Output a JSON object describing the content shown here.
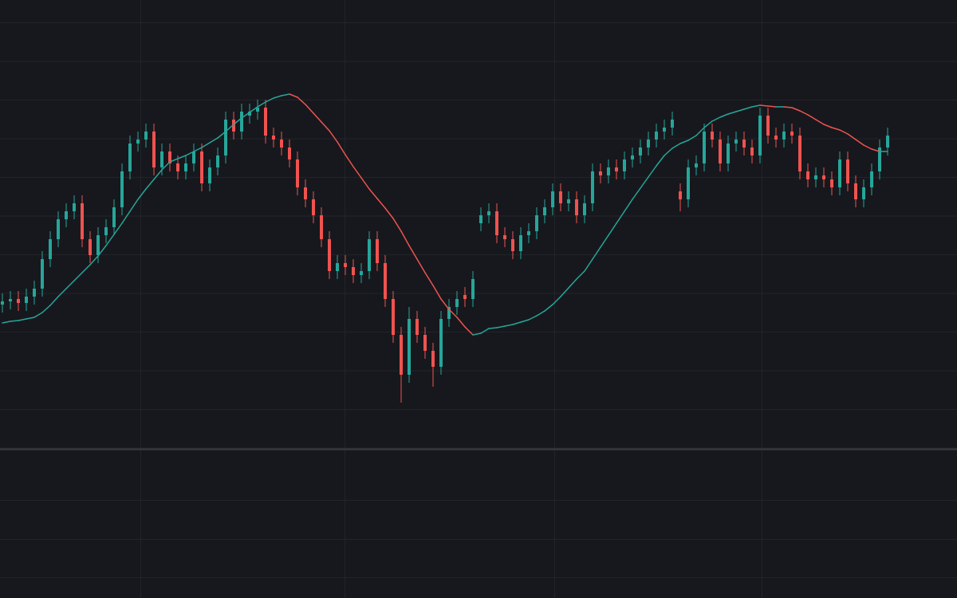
{
  "chart_data": {
    "type": "candlestick",
    "open": [
      61.8,
      62.2,
      62.5,
      62.0,
      62.8,
      63.8,
      67.5,
      70.0,
      72.5,
      73.5,
      74.5,
      70.0,
      68.0,
      70.5,
      71.5,
      74.0,
      78.5,
      82.0,
      82.5,
      83.5,
      79.0,
      81.0,
      79.5,
      78.5,
      79.5,
      81.0,
      77.0,
      79.0,
      80.5,
      85.0,
      83.5,
      85.5,
      86.0,
      86.5,
      83.0,
      82.5,
      81.5,
      80.0,
      76.5,
      75.0,
      73.0,
      70.0,
      66.0,
      67.0,
      66.5,
      65.5,
      66.0,
      70.0,
      67.0,
      62.5,
      58.0,
      53.0,
      60.0,
      58.0,
      56.0,
      54.0,
      60.0,
      61.5,
      63.0,
      62.5,
      72.0,
      73.0,
      73.5,
      70.5,
      70.0,
      68.5,
      70.5,
      71.0,
      73.0,
      74.0,
      76.0,
      74.5,
      75.0,
      73.0,
      74.5,
      78.5,
      78.0,
      79.0,
      78.5,
      80.0,
      80.5,
      81.5,
      82.5,
      83.5,
      84.0,
      76.0,
      75.0,
      79.0,
      79.5,
      83.5,
      82.5,
      79.5,
      82.0,
      82.5,
      81.5,
      80.5,
      85.5,
      83.0,
      82.5,
      83.5,
      83.0,
      78.5,
      77.5,
      78.0,
      77.5,
      76.5,
      80.0,
      77.0,
      75.0,
      76.5,
      78.5,
      81.5
    ],
    "high": [
      63.2,
      63.5,
      63.5,
      63.8,
      64.8,
      68.5,
      71.0,
      73.5,
      74.5,
      75.5,
      75.5,
      71.0,
      71.5,
      72.5,
      75.0,
      79.5,
      83.0,
      83.5,
      84.5,
      84.5,
      82.0,
      82.0,
      80.5,
      80.5,
      82.0,
      82.0,
      80.0,
      81.5,
      86.0,
      86.0,
      87.0,
      87.0,
      87.5,
      87.5,
      84.0,
      83.5,
      82.5,
      81.0,
      77.5,
      76.0,
      74.0,
      71.0,
      68.0,
      68.0,
      67.5,
      67.0,
      71.0,
      71.0,
      68.0,
      63.5,
      59.0,
      61.5,
      61.0,
      59.0,
      57.0,
      61.0,
      62.5,
      63.5,
      64.0,
      66.0,
      74.0,
      74.5,
      74.5,
      71.5,
      71.0,
      71.5,
      72.0,
      74.0,
      75.0,
      77.0,
      77.0,
      76.0,
      76.0,
      75.5,
      79.5,
      79.5,
      80.0,
      80.0,
      81.0,
      81.5,
      82.5,
      83.5,
      84.5,
      85.0,
      86.0,
      77.0,
      80.0,
      80.5,
      84.5,
      84.5,
      83.5,
      83.0,
      83.5,
      83.5,
      82.5,
      86.5,
      86.5,
      84.0,
      84.5,
      84.5,
      84.0,
      79.5,
      79.0,
      79.0,
      78.5,
      81.0,
      81.0,
      78.0,
      77.5,
      79.5,
      82.5,
      84.0
    ],
    "low": [
      60.8,
      61.2,
      61.0,
      61.0,
      61.8,
      62.8,
      66.5,
      69.0,
      71.5,
      72.5,
      69.0,
      67.0,
      67.0,
      69.5,
      70.5,
      73.0,
      77.5,
      81.0,
      81.5,
      78.0,
      78.0,
      78.5,
      77.5,
      77.5,
      78.5,
      76.0,
      76.0,
      78.0,
      79.5,
      82.5,
      82.5,
      84.5,
      85.0,
      82.0,
      81.5,
      80.5,
      79.0,
      75.5,
      74.0,
      72.0,
      69.0,
      65.0,
      65.0,
      65.5,
      64.5,
      64.5,
      65.0,
      66.0,
      61.5,
      57.0,
      49.5,
      52.0,
      57.0,
      55.0,
      51.5,
      53.0,
      59.0,
      60.5,
      61.5,
      61.5,
      71.0,
      72.0,
      69.5,
      69.0,
      67.5,
      67.5,
      69.5,
      70.0,
      72.0,
      73.0,
      73.5,
      73.5,
      72.0,
      72.0,
      73.5,
      77.0,
      77.0,
      77.5,
      77.5,
      79.0,
      79.5,
      80.5,
      81.5,
      82.5,
      83.0,
      73.5,
      74.0,
      78.0,
      78.5,
      81.5,
      78.5,
      78.5,
      81.0,
      80.5,
      79.5,
      79.5,
      82.0,
      81.5,
      81.5,
      82.0,
      77.5,
      76.5,
      76.5,
      76.5,
      75.5,
      75.5,
      76.0,
      74.0,
      74.0,
      75.5,
      77.5,
      80.5
    ],
    "close": [
      62.2,
      62.5,
      62.0,
      62.8,
      63.8,
      67.5,
      70.0,
      72.5,
      73.5,
      74.5,
      70.0,
      68.0,
      70.5,
      71.5,
      74.0,
      78.5,
      82.0,
      82.5,
      83.5,
      79.0,
      81.0,
      79.5,
      78.5,
      79.5,
      81.0,
      77.0,
      79.0,
      80.5,
      85.0,
      83.5,
      86.0,
      86.0,
      86.5,
      83.0,
      82.5,
      81.5,
      80.0,
      76.5,
      75.0,
      73.0,
      70.0,
      66.0,
      67.0,
      66.5,
      65.5,
      66.0,
      70.0,
      67.0,
      62.5,
      58.0,
      53.0,
      60.0,
      58.0,
      56.0,
      54.0,
      60.0,
      61.5,
      62.5,
      62.5,
      65.0,
      73.0,
      73.5,
      70.5,
      70.0,
      68.5,
      70.5,
      71.0,
      73.0,
      74.0,
      76.0,
      74.5,
      75.0,
      73.0,
      74.5,
      78.5,
      78.0,
      79.0,
      78.5,
      80.0,
      80.5,
      81.5,
      82.5,
      83.5,
      84.0,
      85.0,
      75.0,
      79.0,
      79.5,
      83.5,
      82.5,
      79.5,
      82.0,
      82.5,
      81.5,
      80.5,
      85.5,
      83.0,
      82.5,
      83.5,
      83.0,
      78.5,
      77.5,
      78.0,
      77.5,
      76.5,
      80.0,
      77.0,
      75.0,
      76.5,
      78.5,
      81.5,
      83.0
    ],
    "up_color": "#26a69a",
    "down_color": "#ef5350",
    "moving_average": {
      "values": [
        59.5,
        59.7,
        59.8,
        60.0,
        60.2,
        60.8,
        61.7,
        62.8,
        63.8,
        64.8,
        65.8,
        66.8,
        67.9,
        69.2,
        70.6,
        72.0,
        73.5,
        75.0,
        76.3,
        77.5,
        78.7,
        79.7,
        80.1,
        80.5,
        81.0,
        81.5,
        82.1,
        82.7,
        83.5,
        84.4,
        85.2,
        85.9,
        86.6,
        87.2,
        87.7,
        88.0,
        88.2,
        87.8,
        86.9,
        85.8,
        84.7,
        83.6,
        82.2,
        80.6,
        79.1,
        77.7,
        76.3,
        75.1,
        73.9,
        72.6,
        71.0,
        69.2,
        67.5,
        65.8,
        64.2,
        62.5,
        61.2,
        60.2,
        59.0,
        58.0,
        58.2,
        58.8,
        58.9,
        59.1,
        59.3,
        59.6,
        59.9,
        60.4,
        61.0,
        61.8,
        62.8,
        63.9,
        65.0,
        66.0,
        67.5,
        69.0,
        70.5,
        72.0,
        73.5,
        75.0,
        76.4,
        77.8,
        79.2,
        80.5,
        81.4,
        82.0,
        82.4,
        83.0,
        84.0,
        84.8,
        85.3,
        85.7,
        86.0,
        86.3,
        86.6,
        86.8,
        86.7,
        86.6,
        86.6,
        86.5,
        86.1,
        85.6,
        85.0,
        84.4,
        84.0,
        83.7,
        83.2,
        82.5,
        81.8,
        81.3,
        81.0,
        81.0
      ],
      "up_color": "#26a69a",
      "down_color": "#ef5350"
    },
    "ylim": [
      43.7,
      100
    ],
    "grid": true
  }
}
